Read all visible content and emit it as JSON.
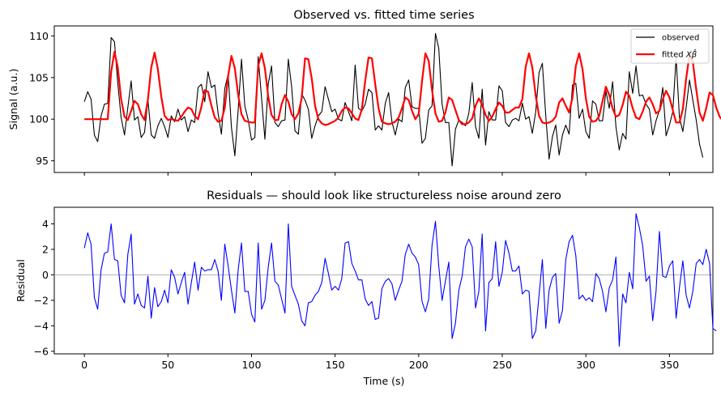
{
  "chart_data": [
    {
      "type": "line",
      "title": "Observed vs. fitted time series",
      "xlabel": "",
      "ylabel": "Signal (a.u.)",
      "xlim": [
        -18,
        376
      ],
      "ylim": [
        93.6,
        111.2
      ],
      "xticks": [
        0,
        50,
        100,
        150,
        200,
        250,
        300,
        350
      ],
      "yticks": [
        95,
        100,
        105,
        110
      ],
      "show_xtick_labels": false,
      "grid": false,
      "legend_position": "top-right",
      "x_step": 2,
      "series": [
        {
          "name": "observed",
          "color": "#000000",
          "values": [
            102.1,
            103.3,
            102.4,
            98.1,
            97.3,
            100.4,
            101.8,
            101.9,
            109.8,
            109.3,
            104.3,
            100.2,
            98.1,
            101.4,
            104.6,
            99.9,
            100.3,
            97.8,
            98.4,
            102.3,
            98.1,
            97.7,
            99.2,
            100.1,
            99.1,
            97.8,
            100.4,
            99.7,
            101.2,
            99.9,
            100.3,
            98.5,
            99.9,
            99.6,
            103.8,
            104.2,
            102.1,
            105.7,
            103.8,
            104.1,
            100.7,
            98.2,
            103.7,
            105.4,
            99.0,
            95.6,
            101.1,
            107.2,
            101.6,
            99.9,
            97.5,
            97.8,
            107.5,
            102.5,
            97.6,
            104.2,
            106.4,
            99.6,
            99.1,
            99.8,
            99.9,
            107.2,
            103.9,
            98.6,
            98.2,
            103.0,
            102.3,
            101.2,
            97.7,
            99.2,
            100.4,
            100.9,
            103.9,
            102.4,
            100.9,
            101.2,
            100.0,
            99.8,
            102.0,
            100.9,
            99.8,
            106.5,
            101.3,
            101.0,
            101.8,
            103.6,
            103.2,
            98.7,
            99.2,
            98.7,
            101.9,
            103.2,
            99.7,
            98.1,
            100.0,
            99.7,
            103.8,
            104.7,
            101.5,
            101.3,
            101.3,
            97.1,
            97.7,
            101.1,
            101.6,
            110.3,
            108.5,
            101.8,
            99.6,
            99.6,
            94.4,
            98.8,
            99.9,
            99.6,
            99.2,
            100.7,
            104.4,
            99.1,
            97.7,
            103.6,
            96.9,
            100.9,
            99.9,
            99.9,
            104.0,
            103.4,
            99.6,
            99.1,
            99.9,
            100.1,
            99.8,
            101.9,
            100.0,
            100.3,
            98.3,
            100.9,
            105.6,
            106.7,
            100.4,
            95.2,
            97.9,
            99.3,
            95.7,
            98.1,
            99.3,
            98.2,
            104.1,
            104.3,
            100.1,
            101.2,
            98.5,
            97.7,
            102.2,
            101.8,
            99.8,
            99.8,
            103.4,
            101.3,
            104.5,
            99.1,
            96.3,
            98.3,
            97.6,
            105.7,
            103.1,
            106.4,
            102.8,
            102.9,
            101.8,
            101.2,
            98.1,
            99.8,
            101.1,
            103.8,
            98.0,
            99.3,
            100.9,
            107.4,
            100.2,
            98.5,
            101.4,
            104.7,
            102.3,
            99.9,
            97.0,
            95.4
          ]
        },
        {
          "name": "fitted Xβ̂",
          "color": "#ff0000",
          "values": [
            100.0,
            100.0,
            100.0,
            100.0,
            100.0,
            100.0,
            100.0,
            100.0,
            105.7,
            108.1,
            106.2,
            102.4,
            100.3,
            99.9,
            101.0,
            102.2,
            101.8,
            100.6,
            99.9,
            102.4,
            106.2,
            108.0,
            106.0,
            102.7,
            100.4,
            99.9,
            100.0,
            99.9,
            99.8,
            100.3,
            100.9,
            101.4,
            101.2,
            100.4,
            100.0,
            101.5,
            103.5,
            103.3,
            101.6,
            100.2,
            99.7,
            99.8,
            101.4,
            105.2,
            107.6,
            106.1,
            102.9,
            100.6,
            99.8,
            99.7,
            99.6,
            99.6,
            106.4,
            107.9,
            106.1,
            102.7,
            100.5,
            99.9,
            99.9,
            101.8,
            102.9,
            102.1,
            100.6,
            100.0,
            100.7,
            102.5,
            107.3,
            107.2,
            104.9,
            101.6,
            100.0,
            99.5,
            99.3,
            99.4,
            99.6,
            99.8,
            100.2,
            101.0,
            101.4,
            101.3,
            100.7,
            100.1,
            99.9,
            101.2,
            104.6,
            107.4,
            107.3,
            104.2,
            101.3,
            99.7,
            99.5,
            99.4,
            99.5,
            99.7,
            100.2,
            101.3,
            102.6,
            102.3,
            101.0,
            100.0,
            100.6,
            104.6,
            107.9,
            107.0,
            103.5,
            100.7,
            99.7,
            99.8,
            100.8,
            102.6,
            102.3,
            101.1,
            99.9,
            99.4,
            99.4,
            99.6,
            100.1,
            101.6,
            102.5,
            101.7,
            100.5,
            99.8,
            100.3,
            101.2,
            102.0,
            101.6,
            100.8,
            100.8,
            101.1,
            101.4,
            101.4,
            102.4,
            106.3,
            107.9,
            106.2,
            102.8,
            100.4,
            99.6,
            99.5,
            99.6,
            99.8,
            100.3,
            102.0,
            102.5,
            101.6,
            100.8,
            102.6,
            106.4,
            107.9,
            106.0,
            102.5,
            100.3,
            99.7,
            99.8,
            100.4,
            102.2,
            103.9,
            102.9,
            101.3,
            100.3,
            100.5,
            101.7,
            103.3,
            102.8,
            101.3,
            100.2,
            100.0,
            100.9,
            102.1,
            102.6,
            101.8,
            100.7,
            101.0,
            102.4,
            103.4,
            102.6,
            101.1,
            99.6,
            99.6,
            101.2,
            104.9,
            107.7,
            106.9,
            103.6,
            100.8,
            99.8,
            101.3,
            103.2,
            102.9,
            101.4,
            100.3,
            99.8
          ]
        }
      ]
    },
    {
      "type": "line",
      "title": "Residuals — should look like structureless noise around zero",
      "xlabel": "Time (s)",
      "ylabel": "Residual",
      "xlim": [
        -18,
        376
      ],
      "ylim": [
        -6.2,
        5.3
      ],
      "xticks": [
        0,
        50,
        100,
        150,
        200,
        250,
        300,
        350
      ],
      "yticks": [
        -6,
        -4,
        -2,
        0,
        2,
        4
      ],
      "show_xtick_labels": true,
      "grid": false,
      "zero_line": true,
      "zero_line_color": "#aaaaaa",
      "x_step": 2,
      "series": [
        {
          "name": "",
          "color": "#0000ff",
          "values": [
            2.1,
            3.3,
            2.4,
            -1.8,
            -2.7,
            0.4,
            1.7,
            1.8,
            4.0,
            1.2,
            1.1,
            -1.6,
            -2.2,
            1.6,
            3.2,
            -2.3,
            -1.5,
            -2.4,
            -2.6,
            -0.1,
            -3.4,
            -1.0,
            -2.5,
            -2.1,
            -1.2,
            -2.2,
            0.4,
            -0.2,
            -1.5,
            -0.6,
            0.2,
            -2.3,
            -0.6,
            1.0,
            -1.2,
            0.6,
            0.3,
            0.4,
            0.4,
            1.2,
            0.3,
            -2.0,
            2.4,
            0.7,
            -1.2,
            -3.0,
            0.4,
            2.5,
            -1.3,
            -1.3,
            -3.1,
            -3.7,
            2.5,
            -2.7,
            -2.0,
            0.6,
            2.5,
            -0.5,
            -0.8,
            -1.9,
            -3.0,
            4.0,
            -0.9,
            -1.6,
            -2.3,
            -3.6,
            -4.0,
            -2.2,
            -2.1,
            -1.6,
            -1.3,
            -0.6,
            1.3,
            0.1,
            -1.2,
            -0.9,
            -1.2,
            -0.3,
            2.5,
            2.6,
            0.9,
            0.3,
            -0.4,
            -0.4,
            -1.9,
            -2.4,
            -2.1,
            -3.5,
            -3.4,
            -1.1,
            -0.5,
            -0.3,
            -0.7,
            -2.0,
            -1.2,
            -0.5,
            1.6,
            2.4,
            1.7,
            1.4,
            0.8,
            -2.1,
            -2.9,
            -1.9,
            2.3,
            4.2,
            0.7,
            -2.0,
            -0.5,
            1.0,
            -5.0,
            -3.8,
            -1.2,
            -0.1,
            2.2,
            2.8,
            2.2,
            -2.6,
            -1.3,
            3.2,
            -4.4,
            -0.6,
            -0.3,
            2.6,
            -0.9,
            0.2,
            2.7,
            1.7,
            0.3,
            0.3,
            0.7,
            -1.5,
            -1.2,
            -1.3,
            -5.0,
            -4.4,
            -1.6,
            1.2,
            -4.2,
            -1.2,
            -0.2,
            0.1,
            -3.8,
            -2.8,
            1.2,
            2.6,
            3.1,
            1.5,
            -1.9,
            -1.6,
            -2.0,
            -1.8,
            -2.1,
            0.1,
            -0.3,
            -1.3,
            -2.9,
            -1.0,
            -0.4,
            1.4,
            -5.6,
            -1.5,
            -2.2,
            0.2,
            -1.1,
            4.8,
            3.7,
            2.3,
            -0.5,
            -0.1,
            -3.6,
            -1.3,
            3.4,
            -0.1,
            -0.2,
            0.7,
            1.1,
            -3.4,
            -1.0,
            1.1,
            -1.6,
            -2.6,
            -1.3,
            0.9,
            1.2,
            0.8,
            2.0,
            0.9,
            -4.2,
            -4.4
          ]
        }
      ]
    }
  ]
}
